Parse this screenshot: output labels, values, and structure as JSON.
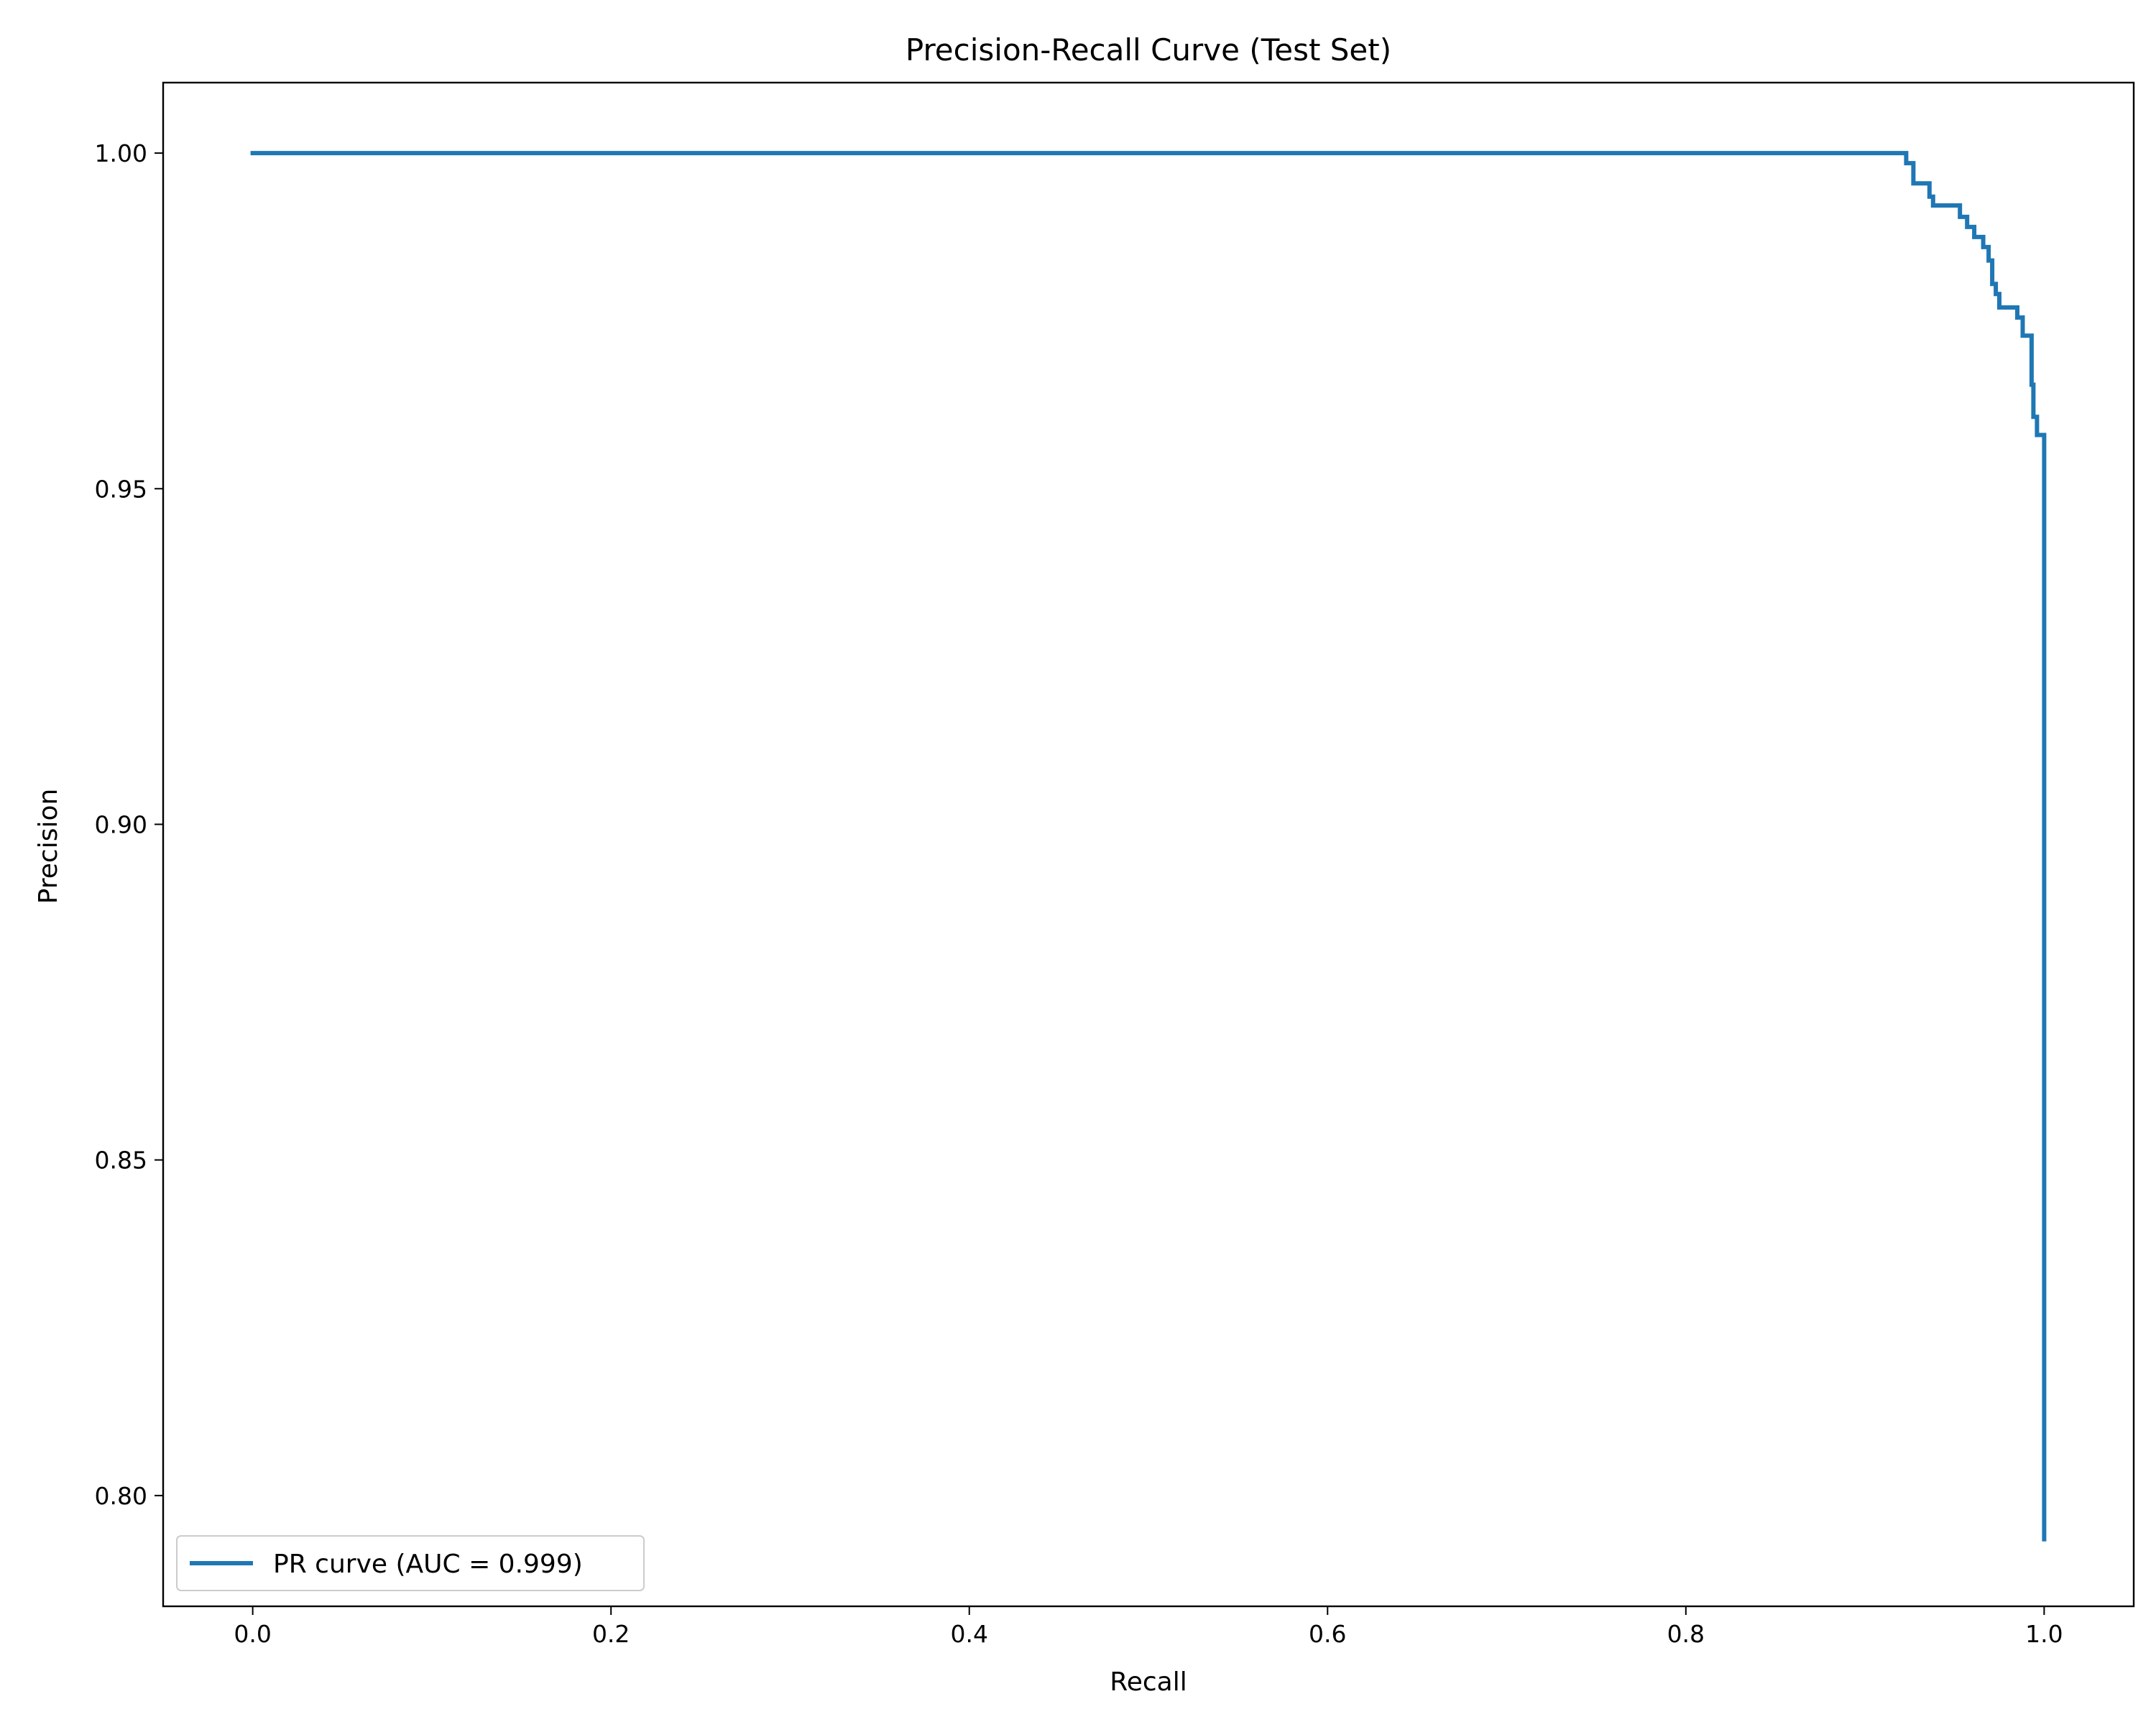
{
  "chart_data": {
    "type": "line",
    "title": "Precision-Recall Curve (Test Set)",
    "xlabel": "Recall",
    "ylabel": "Precision",
    "xlim": [
      -0.05,
      1.05
    ],
    "ylim": [
      0.7835,
      1.0105
    ],
    "xticks": [
      0.0,
      0.2,
      0.4,
      0.6,
      0.8,
      1.0
    ],
    "xtick_labels": [
      "0.0",
      "0.2",
      "0.4",
      "0.6",
      "0.8",
      "1.0"
    ],
    "yticks": [
      0.8,
      0.85,
      0.9,
      0.95,
      1.0
    ],
    "ytick_labels": [
      "0.80",
      "0.85",
      "0.90",
      "0.95",
      "1.00"
    ],
    "grid": false,
    "legend_position": "lower-left",
    "series": [
      {
        "name": "PR curve (AUC = 0.999)",
        "color": "#1f77b4",
        "x": [
          0.0,
          0.923,
          0.923,
          0.927,
          0.927,
          0.936,
          0.936,
          0.938,
          0.938,
          0.953,
          0.953,
          0.957,
          0.957,
          0.961,
          0.961,
          0.966,
          0.966,
          0.969,
          0.969,
          0.971,
          0.971,
          0.973,
          0.973,
          0.975,
          0.975,
          0.985,
          0.985,
          0.988,
          0.988,
          0.993,
          0.993,
          0.994,
          0.994,
          0.996,
          0.996,
          1.0,
          1.0
        ],
        "y": [
          1.0,
          1.0,
          0.9985,
          0.9985,
          0.9955,
          0.9955,
          0.9935,
          0.9935,
          0.9922,
          0.9922,
          0.9905,
          0.9905,
          0.989,
          0.989,
          0.9875,
          0.9875,
          0.986,
          0.986,
          0.984,
          0.984,
          0.9805,
          0.9805,
          0.979,
          0.979,
          0.977,
          0.977,
          0.9755,
          0.9755,
          0.9728,
          0.9728,
          0.9655,
          0.9655,
          0.9607,
          0.9607,
          0.958,
          0.958,
          0.7935
        ]
      }
    ]
  }
}
